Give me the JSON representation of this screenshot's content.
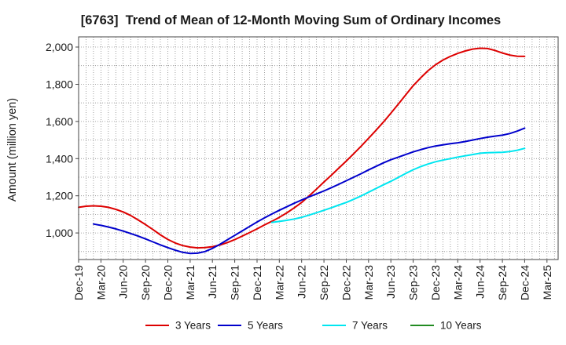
{
  "chart_data": {
    "type": "line",
    "title": "[6763]  Trend of Mean of 12-Month Moving Sum of Ordinary Incomes",
    "ylabel": "Amount (million yen)",
    "xlim": [
      0,
      64.5
    ],
    "x_ticks": [
      0,
      3,
      6,
      9,
      12,
      15,
      18,
      21,
      24,
      27,
      30,
      33,
      36,
      39,
      42,
      45,
      48,
      51,
      54,
      57,
      60,
      63
    ],
    "x_tick_labels": [
      "Dec-19",
      "Mar-20",
      "Jun-20",
      "Sep-20",
      "Dec-20",
      "Mar-21",
      "Jun-21",
      "Sep-21",
      "Dec-21",
      "Mar-22",
      "Jun-22",
      "Sep-22",
      "Dec-22",
      "Mar-23",
      "Jun-23",
      "Sep-23",
      "Dec-23",
      "Mar-24",
      "Jun-24",
      "Sep-24",
      "Dec-24",
      "Mar-25"
    ],
    "ylim": [
      857,
      2055
    ],
    "y_ticks": [
      1000,
      1200,
      1400,
      1600,
      1800,
      2000
    ],
    "y_tick_labels": [
      "1,000",
      "1,200",
      "1,400",
      "1,600",
      "1,800",
      "2,000"
    ],
    "grid": true,
    "legend_position": "bottom",
    "series": [
      {
        "name": "3 Years",
        "color": "#dd0000",
        "start_month": 0,
        "values": [
          1138,
          1144,
          1146,
          1144,
          1138,
          1127,
          1113,
          1094,
          1070,
          1045,
          1018,
          990,
          965,
          946,
          932,
          924,
          920,
          921,
          926,
          935,
          948,
          964,
          983,
          1002,
          1022,
          1043,
          1063,
          1084,
          1108,
          1135,
          1164,
          1199,
          1236,
          1274,
          1311,
          1349,
          1387,
          1426,
          1467,
          1509,
          1552,
          1597,
          1644,
          1693,
          1743,
          1792,
          1834,
          1873,
          1905,
          1930,
          1950,
          1966,
          1979,
          1989,
          1994,
          1992,
          1982,
          1968,
          1957,
          1951,
          1950
        ]
      },
      {
        "name": "5 Years",
        "color": "#0000cc",
        "start_month": 2,
        "values": [
          1048,
          1041,
          1032,
          1022,
          1010,
          997,
          983,
          968,
          952,
          936,
          921,
          907,
          896,
          890,
          891,
          900,
          917,
          939,
          963,
          987,
          1011,
          1035,
          1059,
          1081,
          1102,
          1122,
          1141,
          1160,
          1177,
          1194,
          1210,
          1226,
          1244,
          1262,
          1281,
          1300,
          1319,
          1339,
          1358,
          1377,
          1394,
          1408,
          1422,
          1436,
          1448,
          1459,
          1468,
          1474,
          1480,
          1485,
          1492,
          1500,
          1508,
          1515,
          1521,
          1526,
          1535,
          1548,
          1564
        ]
      },
      {
        "name": "7 Years",
        "color": "#00e6f0",
        "start_month": 26,
        "values": [
          1057,
          1062,
          1068,
          1075,
          1084,
          1096,
          1109,
          1122,
          1136,
          1150,
          1164,
          1181,
          1199,
          1219,
          1239,
          1259,
          1278,
          1299,
          1320,
          1340,
          1357,
          1371,
          1383,
          1392,
          1400,
          1408,
          1415,
          1422,
          1429,
          1432,
          1433,
          1434,
          1438,
          1445,
          1455
        ]
      },
      {
        "name": "10 Years",
        "color": "#228b22",
        "start_month": null,
        "values": []
      }
    ]
  }
}
